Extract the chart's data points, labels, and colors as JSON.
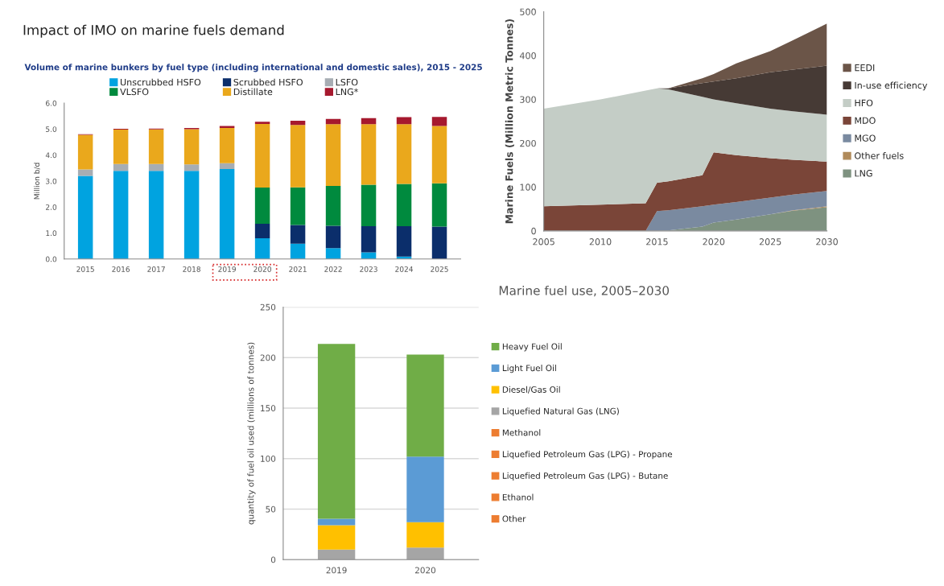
{
  "chart_data": [
    {
      "type": "bar",
      "title": "Impact of IMO on marine fuels demand",
      "subtitle": "Volume of marine bunkers by fuel type (including international and domestic sales), 2015 - 2025",
      "ylabel": "Million b/d",
      "categories": [
        "2015",
        "2016",
        "2017",
        "2018",
        "2019",
        "2020",
        "2021",
        "2022",
        "2023",
        "2024",
        "2025"
      ],
      "stacked": true,
      "legend": "top",
      "series": [
        {
          "name": "Unscrubbed HSFO",
          "color": "#00a3e0",
          "values": [
            3.2,
            3.39,
            3.39,
            3.39,
            3.46,
            0.8,
            0.59,
            0.42,
            0.26,
            0.09,
            0
          ]
        },
        {
          "name": "Scrubbed HSFO",
          "color": "#0b2e6b",
          "values": [
            0,
            0,
            0,
            0,
            0,
            0.56,
            0.72,
            0.86,
            1.0,
            1.17,
            1.25
          ]
        },
        {
          "name": "LSFO",
          "color": "#a7adb3",
          "values": [
            0.25,
            0.27,
            0.27,
            0.25,
            0.23,
            0,
            0,
            0,
            0,
            0,
            0
          ]
        },
        {
          "name": "VLSFO",
          "color": "#008a3e",
          "values": [
            0,
            0,
            0,
            0,
            0,
            1.39,
            1.45,
            1.53,
            1.6,
            1.63,
            1.66
          ]
        },
        {
          "name": "Distillate",
          "color": "#eaa81c",
          "values": [
            1.33,
            1.32,
            1.33,
            1.36,
            1.35,
            2.45,
            2.4,
            2.38,
            2.33,
            2.3,
            2.21
          ]
        },
        {
          "name": "LNG*",
          "color": "#a6192e",
          "values": [
            0.02,
            0.03,
            0.03,
            0.04,
            0.08,
            0.08,
            0.16,
            0.2,
            0.23,
            0.27,
            0.35
          ]
        }
      ],
      "ylim": [
        0,
        6
      ],
      "yticks": [
        {
          "value": 0,
          "label": "0.0"
        },
        {
          "value": 1,
          "label": "1.0"
        },
        {
          "value": 2,
          "label": "2.0"
        },
        {
          "value": 3,
          "label": "3.0"
        },
        {
          "value": 4,
          "label": "4.0"
        },
        {
          "value": 5,
          "label": "5.0"
        },
        {
          "value": 6,
          "label": "6.0"
        }
      ]
    },
    {
      "type": "area",
      "title": "Marine fuel use, 2005–2030",
      "ylabel": "Marine Fuels (Million Metric Tonnes)",
      "stacked": true,
      "legend": "right",
      "x": [
        2005,
        2010,
        2014,
        2015,
        2016,
        2019,
        2020,
        2022,
        2025,
        2027,
        2030
      ],
      "series": [
        {
          "name": "LNG",
          "color": "#7e9280",
          "values": [
            0,
            0,
            0,
            0,
            1,
            10,
            19,
            26,
            38,
            46,
            54
          ]
        },
        {
          "name": "Other fuels",
          "color": "#b08a5a",
          "values": [
            0,
            0,
            0,
            0,
            0,
            0,
            0,
            0,
            0,
            1,
            2
          ]
        },
        {
          "name": "MGO",
          "color": "#7a8aa0",
          "values": [
            0,
            0,
            0,
            45,
            46,
            46,
            41,
            40,
            38,
            36,
            35
          ]
        },
        {
          "name": "MDO",
          "color": "#7a4538",
          "values": [
            56,
            60,
            63,
            65,
            66,
            71,
            119,
            107,
            90,
            79,
            67
          ]
        },
        {
          "name": "HFO",
          "color": "#c4cdc6",
          "values": [
            223,
            240,
            257,
            215,
            210,
            179,
            121,
            118,
            113,
            111,
            107
          ]
        },
        {
          "name": "In-use efficiency",
          "color": "#463a35",
          "values": [
            0,
            0,
            0,
            0,
            2,
            31,
            41,
            57,
            83,
            95,
            112
          ]
        },
        {
          "name": "EEDI",
          "color": "#6b5548",
          "values": [
            0,
            0,
            0,
            0,
            0,
            11,
            17,
            34,
            48,
            67,
            96
          ]
        }
      ],
      "xlim": [
        2005,
        2030
      ],
      "xticks": [
        2005,
        2010,
        2015,
        2020,
        2025,
        2030
      ],
      "ylim": [
        0,
        500
      ],
      "yticks": [
        0,
        100,
        200,
        300,
        400,
        500
      ]
    },
    {
      "type": "bar",
      "ylabel": "quantity of fuel oil used (millions of tonnes)",
      "stacked": true,
      "legend": "right",
      "grid": "y",
      "categories": [
        "2019",
        "2020"
      ],
      "series": [
        {
          "name": "Other",
          "color": "#ed7d31",
          "values": [
            0,
            0
          ]
        },
        {
          "name": "Ethanol",
          "color": "#ed7d31",
          "values": [
            0,
            0
          ]
        },
        {
          "name": "Liquefied Petroleum Gas (LPG) - Butane",
          "color": "#ed7d31",
          "values": [
            0,
            0
          ]
        },
        {
          "name": "Liquefied Petroleum Gas (LPG) - Propane",
          "color": "#ed7d31",
          "values": [
            0,
            0
          ]
        },
        {
          "name": "Methanol",
          "color": "#ed7d31",
          "values": [
            0,
            0
          ]
        },
        {
          "name": "Liquefied Natural Gas (LNG)",
          "color": "#a5a5a5",
          "values": [
            10,
            12
          ]
        },
        {
          "name": "Diesel/Gas Oil",
          "color": "#ffc000",
          "values": [
            24,
            25
          ]
        },
        {
          "name": "Light Fuel Oil",
          "color": "#5b9bd5",
          "values": [
            6.5,
            65
          ]
        },
        {
          "name": "Heavy Fuel Oil",
          "color": "#70ad47",
          "values": [
            173,
            101
          ]
        }
      ],
      "ylim": [
        0,
        250
      ],
      "yticks": [
        0,
        50,
        100,
        150,
        200,
        250
      ]
    }
  ]
}
